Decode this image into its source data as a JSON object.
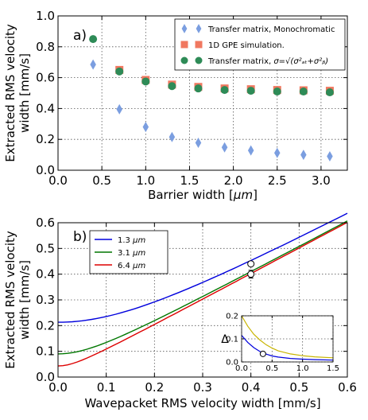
{
  "chart_data": [
    {
      "type": "scatter",
      "panel_label": "a)",
      "xlabel": "Barrier width [",
      "xlabel_unit": "μm",
      "xlabel_close": "]",
      "ylabel_line1": "Extracted RMS velocity",
      "ylabel_line2": "width [mm/s]",
      "xlim": [
        0.0,
        3.3
      ],
      "ylim": [
        0.0,
        1.0
      ],
      "xticks": [
        "0.0",
        "0.5",
        "1.0",
        "1.5",
        "2.0",
        "2.5",
        "3.0"
      ],
      "yticks": [
        "0.0",
        "0.2",
        "0.4",
        "0.6",
        "0.8",
        "1.0"
      ],
      "xtick_values": [
        0.0,
        0.5,
        1.0,
        1.5,
        2.0,
        2.5,
        3.0
      ],
      "ytick_values": [
        0.0,
        0.2,
        0.4,
        0.6,
        0.8,
        1.0
      ],
      "grid": true,
      "legend_position": "top-right",
      "series": [
        {
          "name": "Transfer matrix, Monochromatic",
          "marker": "diamond",
          "color": "#7b9ee0",
          "x": [
            0.4,
            0.7,
            1.0,
            1.3,
            1.6,
            1.9,
            2.2,
            2.5,
            2.8,
            3.1
          ],
          "y": [
            0.685,
            0.395,
            0.28,
            0.215,
            0.178,
            0.148,
            0.128,
            0.112,
            0.1,
            0.09
          ]
        },
        {
          "name": "1D GPE simulation.",
          "marker": "square",
          "color": "#f07860",
          "x": [
            0.7,
            1.0,
            1.3,
            1.6,
            1.9,
            2.2,
            2.5,
            2.8,
            3.1
          ],
          "y": [
            0.65,
            0.585,
            0.555,
            0.54,
            0.53,
            0.525,
            0.52,
            0.518,
            0.515
          ]
        },
        {
          "name": "Transfer matrix, ",
          "name_math": "σ=√(σ²ₐₜ+σ²ᵦ)",
          "marker": "circle",
          "color": "#2e8b57",
          "x": [
            0.4,
            0.7,
            1.0,
            1.3,
            1.6,
            1.9,
            2.2,
            2.5,
            2.8,
            3.1
          ],
          "y": [
            0.85,
            0.64,
            0.575,
            0.545,
            0.53,
            0.52,
            0.515,
            0.51,
            0.51,
            0.505
          ]
        }
      ]
    },
    {
      "type": "line",
      "panel_label": "b)",
      "xlabel": "Wavepacket RMS velocity width [mm/s]",
      "ylabel_line1": "Extracted RMS velocity",
      "ylabel_line2": "width [mm/s]",
      "xlim": [
        0.0,
        0.6
      ],
      "ylim": [
        0.0,
        0.6
      ],
      "xticks": [
        "0.0",
        "0.1",
        "0.2",
        "0.3",
        "0.4",
        "0.5",
        "0.6"
      ],
      "yticks": [
        "0.0",
        "0.1",
        "0.2",
        "0.3",
        "0.4",
        "0.5",
        "0.6"
      ],
      "xtick_values": [
        0.0,
        0.1,
        0.2,
        0.3,
        0.4,
        0.5,
        0.6
      ],
      "ytick_values": [
        0.0,
        0.1,
        0.2,
        0.3,
        0.4,
        0.5,
        0.6
      ],
      "grid": true,
      "legend_position": "top-left",
      "series": [
        {
          "name": "1.3 ",
          "unit": "μm",
          "color": "#0000dd",
          "offset": 0.213
        },
        {
          "name": "3.1 ",
          "unit": "μm",
          "color": "#007700",
          "offset": 0.09
        },
        {
          "name": "6.4 ",
          "unit": "μm",
          "color": "#dd0000",
          "offset": 0.043
        }
      ],
      "points": [
        {
          "x": 0.4,
          "y": 0.44,
          "err": 0.0
        },
        {
          "x": 0.4,
          "y": 0.4,
          "err": 0.015
        }
      ],
      "inset": {
        "ylabel": "Δ",
        "xlim": [
          0.0,
          1.5
        ],
        "ylim": [
          0.0,
          0.2
        ],
        "xticks": [
          "0.0",
          "0.5",
          "1.0",
          "1.5"
        ],
        "yticks": [
          "0.0",
          "0.1",
          "0.2"
        ],
        "xtick_values": [
          0.0,
          0.5,
          1.0,
          1.5
        ],
        "ytick_values": [
          0.0,
          0.1,
          0.2
        ],
        "series": [
          {
            "color": "#c8b400",
            "x": [
              0.0,
              0.1,
              0.2,
              0.3,
              0.4,
              0.5,
              0.6,
              0.8,
              1.0,
              1.2,
              1.5
            ],
            "y": [
              0.2,
              0.155,
              0.12,
              0.095,
              0.075,
              0.06,
              0.048,
              0.035,
              0.027,
              0.022,
              0.018
            ]
          },
          {
            "color": "#0000dd",
            "x": [
              0.0,
              0.1,
              0.2,
              0.3,
              0.4,
              0.5,
              0.6,
              0.8,
              1.0,
              1.2,
              1.5
            ],
            "y": [
              0.115,
              0.085,
              0.062,
              0.045,
              0.034,
              0.026,
              0.021,
              0.015,
              0.012,
              0.01,
              0.008
            ]
          }
        ],
        "points": [
          {
            "x": 0.35,
            "y": 0.035,
            "err": 0.012
          }
        ]
      }
    }
  ]
}
